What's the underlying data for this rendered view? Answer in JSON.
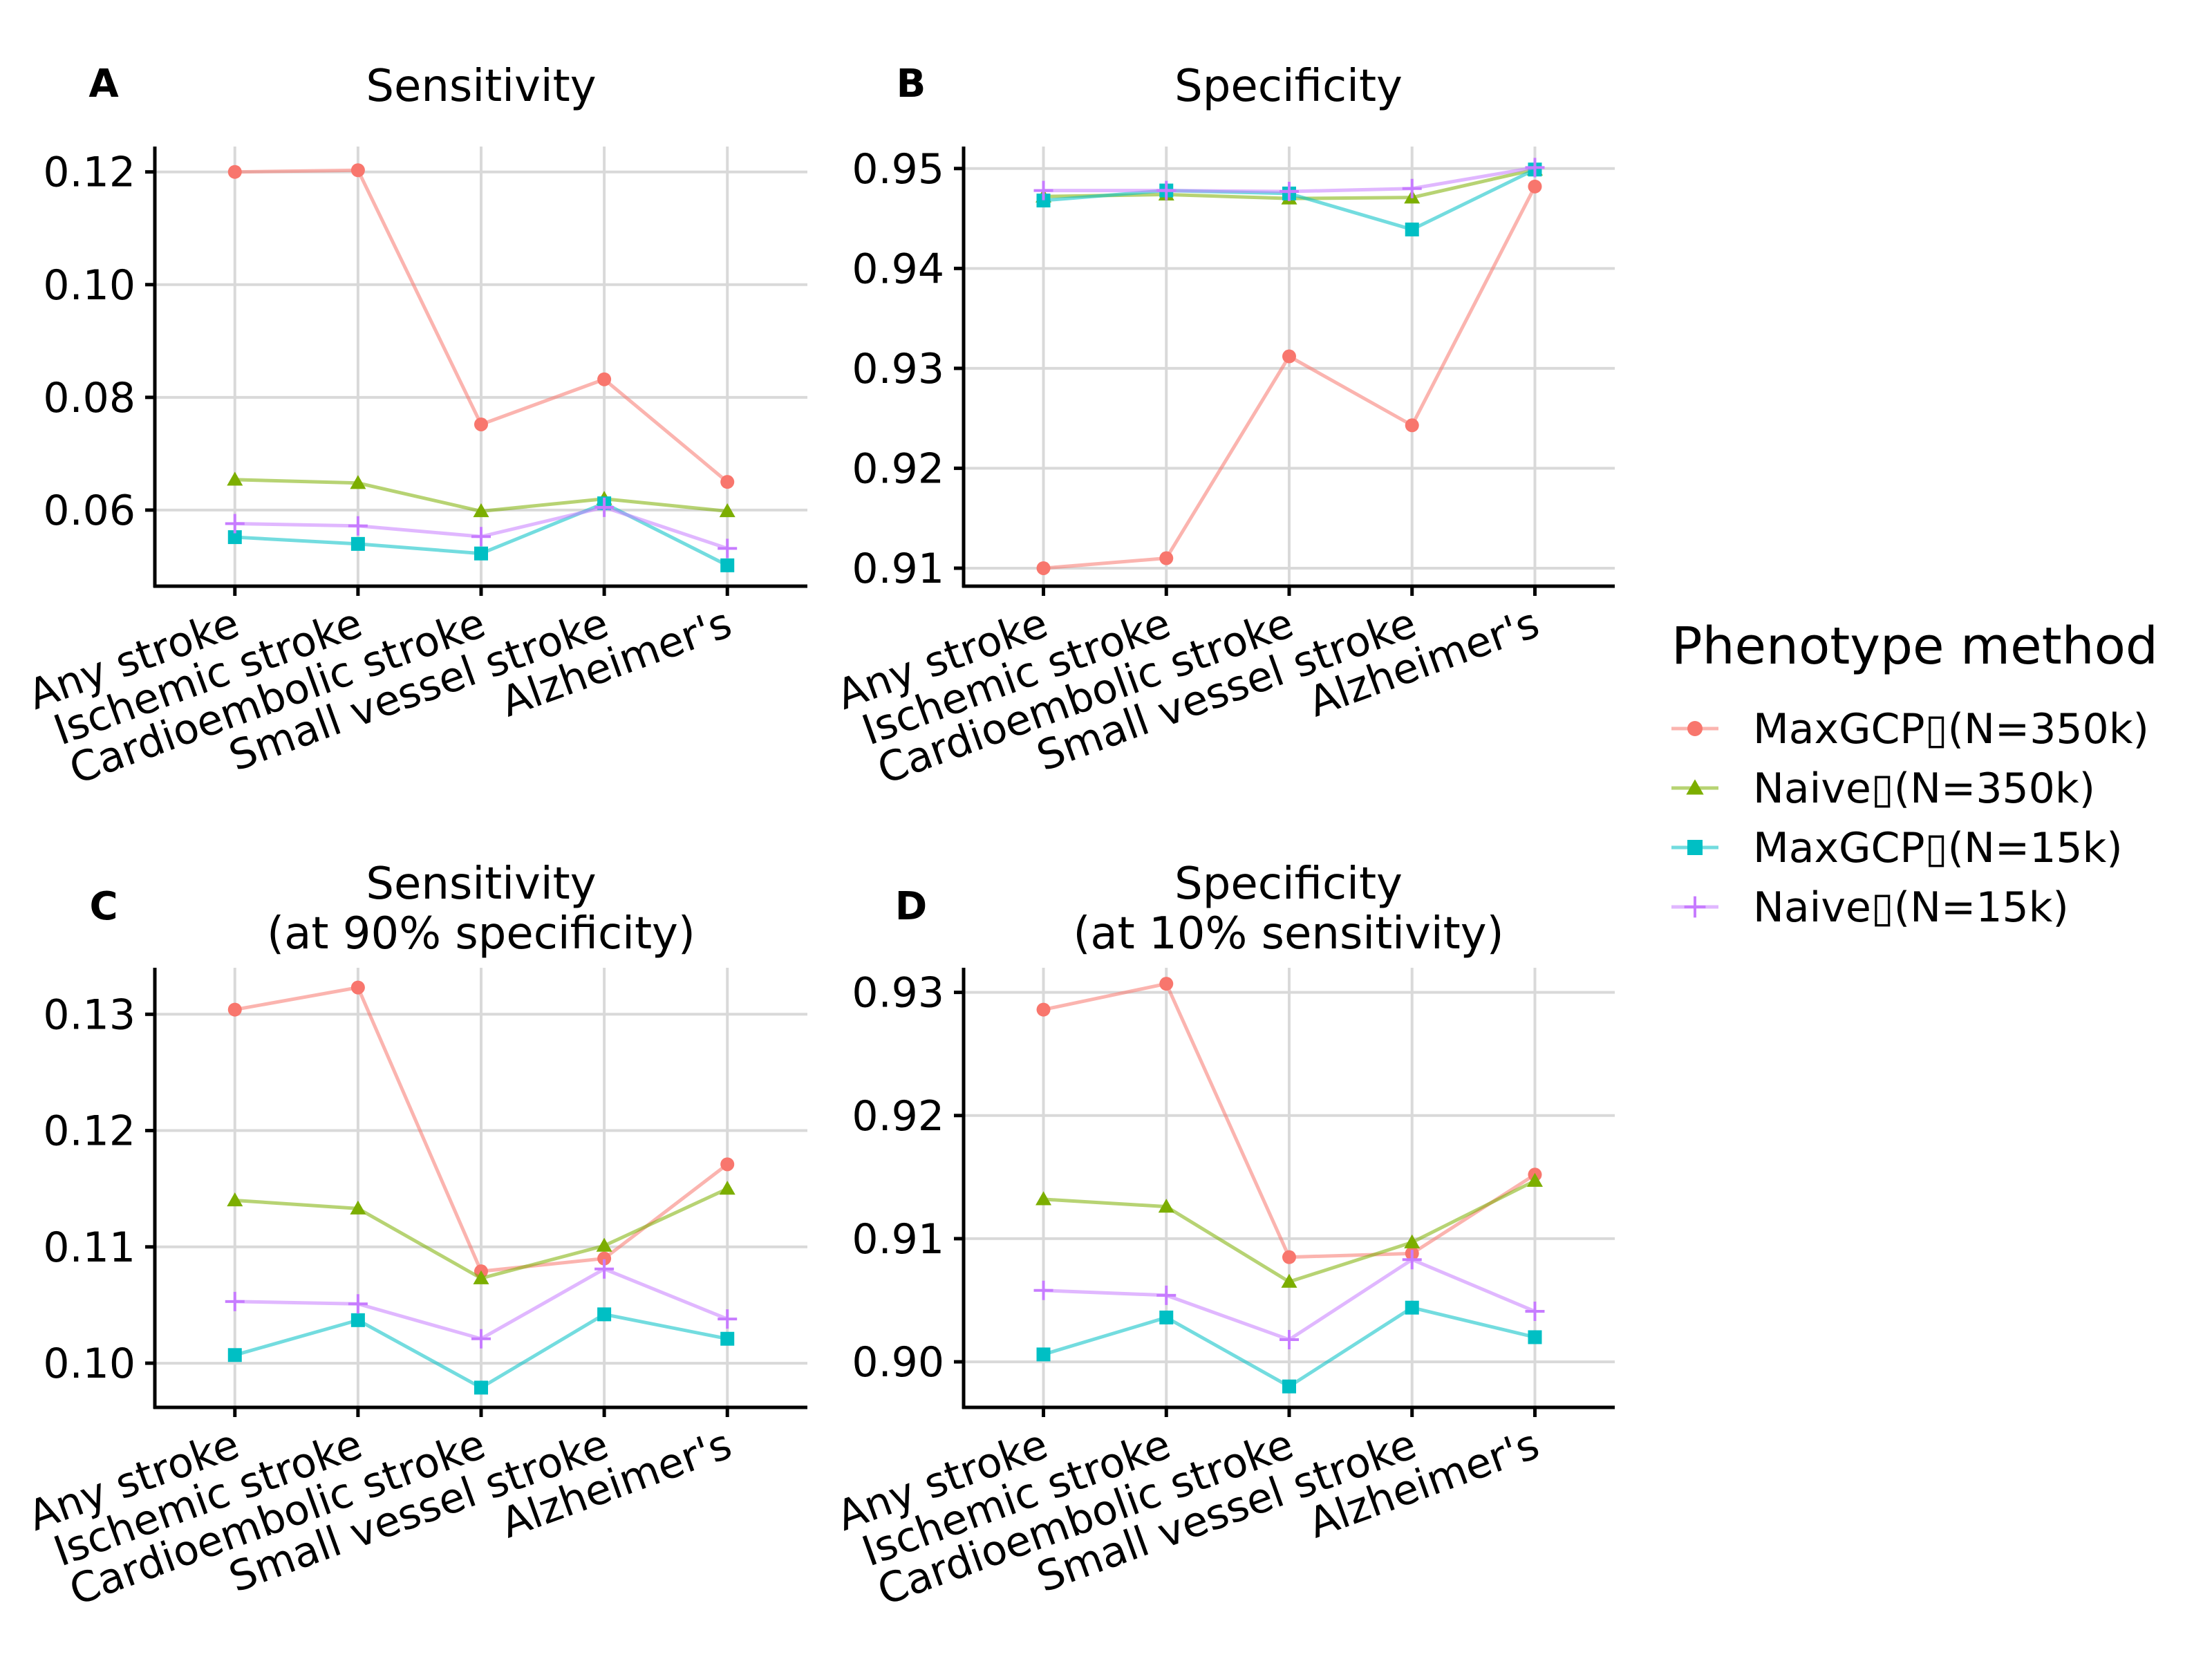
{
  "legend": {
    "title": "Phenotype method",
    "entries": [
      {
        "label": "MaxGCP▯(N=350k)",
        "color": "#F8766D",
        "marker": "circle"
      },
      {
        "label": "Naive▯(N=350k)",
        "color": "#7CAE00",
        "marker": "triangle"
      },
      {
        "label": "MaxGCP▯(N=15k)",
        "color": "#00BFC4",
        "marker": "square"
      },
      {
        "label": "Naive▯(N=15k)",
        "color": "#C77CFF",
        "marker": "plus"
      }
    ]
  },
  "chart_data": [
    {
      "type": "line",
      "tag": "A",
      "title": [
        "Sensitivity"
      ],
      "categories": [
        "Any stroke",
        "Ischemic stroke",
        "Cardioembolic stroke",
        "Small vessel stroke",
        "Alzheimer's"
      ],
      "ylim": [
        0.0465,
        0.1245
      ],
      "yticks": [
        0.06,
        0.08,
        0.1,
        0.12
      ],
      "ytick_labels": [
        "0.06",
        "0.08",
        "0.10",
        "0.12"
      ],
      "grid": true,
      "series": [
        {
          "name": "MaxGCP▯(N=350k)",
          "values": [
            0.12,
            0.1203,
            0.0752,
            0.0832,
            0.065
          ]
        },
        {
          "name": "Naive▯(N=350k)",
          "values": [
            0.0654,
            0.0648,
            0.0598,
            0.062,
            0.0598
          ]
        },
        {
          "name": "MaxGCP▯(N=15k)",
          "values": [
            0.0552,
            0.054,
            0.0523,
            0.0612,
            0.0502
          ]
        },
        {
          "name": "Naive▯(N=15k)",
          "values": [
            0.0576,
            0.0572,
            0.0553,
            0.0605,
            0.0532
          ]
        }
      ]
    },
    {
      "type": "line",
      "tag": "B",
      "title": [
        "Specificity"
      ],
      "categories": [
        "Any stroke",
        "Ischemic stroke",
        "Cardioembolic stroke",
        "Small vessel stroke",
        "Alzheimer's"
      ],
      "ylim": [
        0.9082,
        0.9522
      ],
      "yticks": [
        0.91,
        0.92,
        0.93,
        0.94,
        0.95
      ],
      "ytick_labels": [
        "0.91",
        "0.92",
        "0.93",
        "0.94",
        "0.95"
      ],
      "grid": true,
      "series": [
        {
          "name": "MaxGCP▯(N=350k)",
          "values": [
            0.91,
            0.911,
            0.9312,
            0.9243,
            0.9482
          ]
        },
        {
          "name": "Naive▯(N=350k)",
          "values": [
            0.9472,
            0.9474,
            0.947,
            0.9471,
            0.9499
          ]
        },
        {
          "name": "MaxGCP▯(N=15k)",
          "values": [
            0.9468,
            0.9478,
            0.9475,
            0.9439,
            0.9499
          ]
        },
        {
          "name": "Naive▯(N=15k)",
          "values": [
            0.9478,
            0.9478,
            0.9477,
            0.948,
            0.9501
          ]
        }
      ]
    },
    {
      "type": "line",
      "tag": "C",
      "title": [
        "Sensitivity",
        "(at 90% specificity)"
      ],
      "categories": [
        "Any stroke",
        "Ischemic stroke",
        "Cardioembolic stroke",
        "Small vessel stroke",
        "Alzheimer's"
      ],
      "ylim": [
        0.0962,
        0.134
      ],
      "yticks": [
        0.1,
        0.11,
        0.12,
        0.13
      ],
      "ytick_labels": [
        "0.10",
        "0.11",
        "0.12",
        "0.13"
      ],
      "grid": true,
      "series": [
        {
          "name": "MaxGCP▯(N=350k)",
          "values": [
            0.1304,
            0.1323,
            0.1079,
            0.109,
            0.1171
          ]
        },
        {
          "name": "Naive▯(N=350k)",
          "values": [
            0.114,
            0.1133,
            0.1073,
            0.1101,
            0.115
          ]
        },
        {
          "name": "MaxGCP▯(N=15k)",
          "values": [
            0.1007,
            0.1037,
            0.0979,
            0.1042,
            0.1021
          ]
        },
        {
          "name": "Naive▯(N=15k)",
          "values": [
            0.1053,
            0.1051,
            0.1021,
            0.1081,
            0.1038
          ]
        }
      ]
    },
    {
      "type": "line",
      "tag": "D",
      "title": [
        "Specificity",
        "(at 10% sensitivity)"
      ],
      "categories": [
        "Any stroke",
        "Ischemic stroke",
        "Cardioembolic stroke",
        "Small vessel stroke",
        "Alzheimer's"
      ],
      "ylim": [
        0.8963,
        0.932
      ],
      "yticks": [
        0.9,
        0.91,
        0.92,
        0.93
      ],
      "ytick_labels": [
        "0.90",
        "0.91",
        "0.92",
        "0.93"
      ],
      "grid": true,
      "series": [
        {
          "name": "MaxGCP▯(N=350k)",
          "values": [
            0.9286,
            0.9307,
            0.9085,
            0.9088,
            0.9152
          ]
        },
        {
          "name": "Naive▯(N=350k)",
          "values": [
            0.9132,
            0.9126,
            0.9065,
            0.9097,
            0.9147
          ]
        },
        {
          "name": "MaxGCP▯(N=15k)",
          "values": [
            0.9006,
            0.9036,
            0.898,
            0.9044,
            0.902
          ]
        },
        {
          "name": "Naive▯(N=15k)",
          "values": [
            0.9058,
            0.9054,
            0.9018,
            0.9083,
            0.9041
          ]
        }
      ]
    }
  ]
}
